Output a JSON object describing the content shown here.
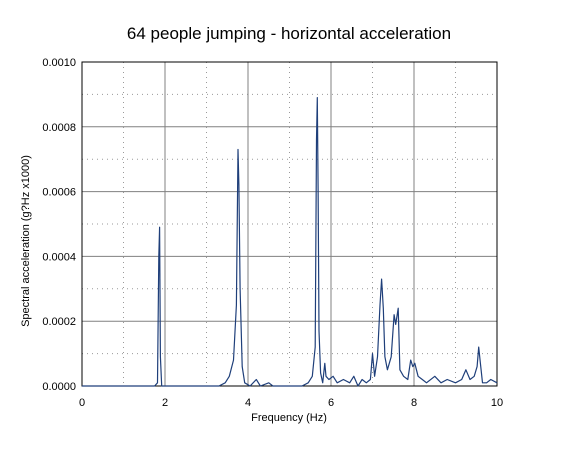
{
  "chart_data": {
    "type": "line",
    "title": "64 people jumping - horizontal acceleration",
    "xlabel": "Frequency (Hz)",
    "ylabel": "Spectral acceleration (g?Hz x1000)",
    "xlim": [
      0,
      10
    ],
    "ylim": [
      0,
      0.001
    ],
    "x_ticks": [
      "0",
      "2",
      "4",
      "6",
      "8",
      "10"
    ],
    "y_ticks": [
      "0.0000",
      "0.0002",
      "0.0004",
      "0.0006",
      "0.0008",
      "0.0010"
    ],
    "grid": "major solid, minor dotted",
    "legend": "none",
    "series": [
      {
        "color": "#1f3f7a",
        "points": [
          [
            0.0,
            0.0
          ],
          [
            1.75,
            0.0
          ],
          [
            1.82,
            1e-05
          ],
          [
            1.85,
            0.0004
          ],
          [
            1.87,
            0.00049
          ],
          [
            1.89,
            9e-05
          ],
          [
            1.92,
            0.0
          ],
          [
            3.3,
            0.0
          ],
          [
            3.45,
            1e-05
          ],
          [
            3.55,
            3e-05
          ],
          [
            3.65,
            8e-05
          ],
          [
            3.72,
            0.00025
          ],
          [
            3.76,
            0.00073
          ],
          [
            3.78,
            0.00062
          ],
          [
            3.81,
            0.0003
          ],
          [
            3.86,
            6e-05
          ],
          [
            3.92,
            1e-05
          ],
          [
            4.05,
            0.0
          ],
          [
            4.2,
            2e-05
          ],
          [
            4.3,
            0.0
          ],
          [
            4.5,
            1e-05
          ],
          [
            4.6,
            0.0
          ],
          [
            5.3,
            0.0
          ],
          [
            5.45,
            1e-05
          ],
          [
            5.55,
            3e-05
          ],
          [
            5.62,
            0.00012
          ],
          [
            5.65,
            0.00076
          ],
          [
            5.67,
            0.00089
          ],
          [
            5.69,
            0.00061
          ],
          [
            5.71,
            0.00017
          ],
          [
            5.75,
            4e-05
          ],
          [
            5.8,
            1e-05
          ],
          [
            5.85,
            7e-05
          ],
          [
            5.88,
            3e-05
          ],
          [
            5.95,
            2e-05
          ],
          [
            6.05,
            3e-05
          ],
          [
            6.15,
            1e-05
          ],
          [
            6.3,
            2e-05
          ],
          [
            6.45,
            1e-05
          ],
          [
            6.55,
            3e-05
          ],
          [
            6.65,
            0.0
          ],
          [
            6.75,
            2e-05
          ],
          [
            6.85,
            1e-05
          ],
          [
            6.95,
            2e-05
          ],
          [
            7.0,
            0.0001
          ],
          [
            7.05,
            3e-05
          ],
          [
            7.12,
            9e-05
          ],
          [
            7.18,
            0.00025
          ],
          [
            7.22,
            0.00033
          ],
          [
            7.26,
            0.00024
          ],
          [
            7.3,
            9e-05
          ],
          [
            7.36,
            5e-05
          ],
          [
            7.45,
            9e-05
          ],
          [
            7.52,
            0.00022
          ],
          [
            7.56,
            0.00019
          ],
          [
            7.62,
            0.00024
          ],
          [
            7.66,
            5e-05
          ],
          [
            7.75,
            3e-05
          ],
          [
            7.85,
            2e-05
          ],
          [
            7.92,
            8e-05
          ],
          [
            7.97,
            6e-05
          ],
          [
            8.02,
            7e-05
          ],
          [
            8.1,
            3e-05
          ],
          [
            8.2,
            2e-05
          ],
          [
            8.3,
            1e-05
          ],
          [
            8.5,
            3e-05
          ],
          [
            8.65,
            1e-05
          ],
          [
            8.8,
            2e-05
          ],
          [
            9.0,
            1e-05
          ],
          [
            9.15,
            2e-05
          ],
          [
            9.25,
            5e-05
          ],
          [
            9.35,
            2e-05
          ],
          [
            9.45,
            3e-05
          ],
          [
            9.52,
            6e-05
          ],
          [
            9.56,
            0.00012
          ],
          [
            9.6,
            7e-05
          ],
          [
            9.65,
            1e-05
          ],
          [
            9.75,
            1e-05
          ],
          [
            9.85,
            2e-05
          ],
          [
            10.0,
            1e-05
          ]
        ]
      }
    ]
  }
}
